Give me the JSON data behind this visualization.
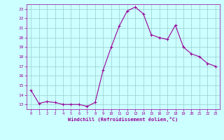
{
  "hours": [
    0,
    1,
    2,
    3,
    4,
    5,
    6,
    7,
    8,
    9,
    10,
    11,
    12,
    13,
    14,
    15,
    16,
    17,
    18,
    19,
    20,
    21,
    22,
    23
  ],
  "temps": [
    14.5,
    13.1,
    13.3,
    13.2,
    13.0,
    13.0,
    13.0,
    12.8,
    13.2,
    16.6,
    19.0,
    21.2,
    22.8,
    23.2,
    22.5,
    20.3,
    20.0,
    19.8,
    21.3,
    19.0,
    18.3,
    18.0,
    17.3,
    17.0
  ],
  "line_color": "#990099",
  "marker_color": "#990099",
  "bg_color": "#ccffff",
  "grid_color": "#99cccc",
  "xlabel": "Windchill (Refroidissement éolien,°C)",
  "xlabel_color": "#990099",
  "tick_color": "#990099",
  "ylim": [
    12.5,
    23.5
  ],
  "xlim": [
    -0.5,
    23.5
  ],
  "yticks": [
    13,
    14,
    15,
    16,
    17,
    18,
    19,
    20,
    21,
    22,
    23
  ],
  "xticks": [
    0,
    1,
    2,
    3,
    4,
    5,
    6,
    7,
    8,
    9,
    10,
    11,
    12,
    13,
    14,
    15,
    16,
    17,
    18,
    19,
    20,
    21,
    22,
    23
  ]
}
